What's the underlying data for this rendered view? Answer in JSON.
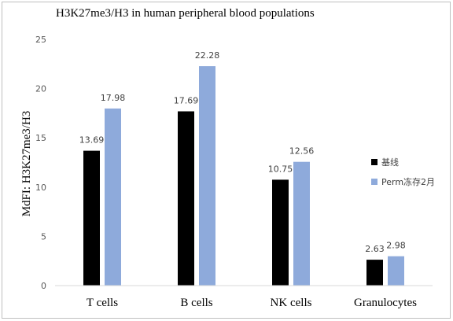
{
  "chart_data": {
    "type": "bar",
    "title": "H3K27me3/H3 in human peripheral blood populations",
    "ylabel": "MdFI: H3K27me3/H3",
    "xlabel": "",
    "categories": [
      "T cells",
      "B cells",
      "NK cells",
      "Granulocytes"
    ],
    "series": [
      {
        "name": "基线",
        "color": "#000000",
        "values": [
          13.69,
          17.69,
          10.75,
          2.63
        ],
        "labels": [
          "13.69",
          "17.69",
          "10.75",
          "2.63"
        ]
      },
      {
        "name": "Perm冻存2月",
        "color": "#8eaadb",
        "values": [
          17.98,
          22.28,
          12.56,
          2.98
        ],
        "labels": [
          "17.98",
          "22.28",
          "12.56",
          "2.98"
        ]
      }
    ],
    "ylim": [
      0,
      25
    ],
    "yticks": [
      0,
      5,
      10,
      15,
      20,
      25
    ],
    "ytick_labels": [
      "0",
      "5",
      "10",
      "15",
      "20",
      "25"
    ],
    "grid": false,
    "legend_position": "right"
  }
}
